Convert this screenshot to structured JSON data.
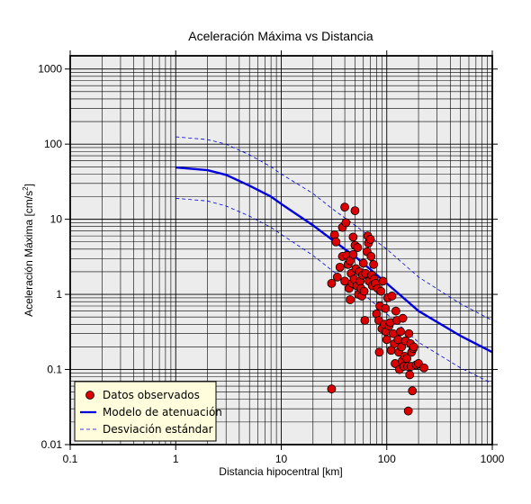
{
  "chart_data": {
    "type": "scatter",
    "title": "Aceleración Máxima vs Distancia",
    "xlabel": "Distancia hipocentral [km]",
    "ylabel_main": "Aceleración Máxima [cm/s",
    "ylabel_sup": "2",
    "ylabel_end": "]",
    "x_scale": "log",
    "y_scale": "log",
    "xlim": [
      0.1,
      1000
    ],
    "ylim": [
      0.01,
      1500
    ],
    "x_ticks": [
      {
        "value": 0.1,
        "label": "0.1"
      },
      {
        "value": 1,
        "label": "1"
      },
      {
        "value": 10,
        "label": "10"
      },
      {
        "value": 100,
        "label": "100"
      },
      {
        "value": 1000,
        "label": "1000"
      }
    ],
    "y_ticks": [
      {
        "value": 0.01,
        "label": "0.01"
      },
      {
        "value": 0.1,
        "label": "0.1"
      },
      {
        "value": 1,
        "label": "1"
      },
      {
        "value": 10,
        "label": "10"
      },
      {
        "value": 100,
        "label": "100"
      },
      {
        "value": 1000,
        "label": "1000"
      }
    ],
    "grid": true,
    "legend_position": "bottom-left",
    "colors": {
      "plot_background": "#ececec",
      "points": "#dd0000",
      "model": "#0000dd",
      "deviation": "#0000dd",
      "legend_background": "#fffddc"
    },
    "series": [
      {
        "name": "Datos observados",
        "kind": "points",
        "points": [
          [
            30,
            0.055
          ],
          [
            30,
            1.4
          ],
          [
            32,
            6.2
          ],
          [
            33,
            5.0
          ],
          [
            34,
            1.7
          ],
          [
            36,
            2.3
          ],
          [
            38,
            3.2
          ],
          [
            38,
            7.8
          ],
          [
            40,
            14.5
          ],
          [
            40,
            1.5
          ],
          [
            41,
            9.0
          ],
          [
            42,
            3.3
          ],
          [
            43,
            2.5
          ],
          [
            44,
            1.2
          ],
          [
            45,
            0.85
          ],
          [
            45,
            2.8
          ],
          [
            46,
            1.9
          ],
          [
            47,
            1.4
          ],
          [
            48,
            5.8
          ],
          [
            48,
            3.4
          ],
          [
            49,
            1.6
          ],
          [
            50,
            13.0
          ],
          [
            50,
            4.5
          ],
          [
            51,
            2.2
          ],
          [
            52,
            1.3
          ],
          [
            53,
            4.2
          ],
          [
            54,
            1.0
          ],
          [
            55,
            2.0
          ],
          [
            56,
            1.5
          ],
          [
            57,
            1.2
          ],
          [
            58,
            0.95
          ],
          [
            59,
            1.8
          ],
          [
            60,
            2.6
          ],
          [
            61,
            1.1
          ],
          [
            62,
            0.45
          ],
          [
            63,
            1.9
          ],
          [
            65,
            3.7
          ],
          [
            66,
            6.0
          ],
          [
            67,
            4.8
          ],
          [
            68,
            1.5
          ],
          [
            70,
            5.4
          ],
          [
            71,
            3.2
          ],
          [
            72,
            1.8
          ],
          [
            73,
            1.3
          ],
          [
            75,
            2.5
          ],
          [
            76,
            1.6
          ],
          [
            78,
            1.4
          ],
          [
            80,
            0.55
          ],
          [
            82,
            1.2
          ],
          [
            84,
            0.45
          ],
          [
            85,
            0.17
          ],
          [
            86,
            0.7
          ],
          [
            88,
            1.1
          ],
          [
            90,
            0.35
          ],
          [
            92,
            1.5
          ],
          [
            95,
            0.4
          ],
          [
            97,
            0.65
          ],
          [
            98,
            0.32
          ],
          [
            100,
            0.25
          ],
          [
            102,
            0.9
          ],
          [
            105,
            0.38
          ],
          [
            108,
            0.42
          ],
          [
            110,
            0.18
          ],
          [
            112,
            0.95
          ],
          [
            115,
            0.3
          ],
          [
            118,
            0.22
          ],
          [
            120,
            0.12
          ],
          [
            122,
            0.6
          ],
          [
            125,
            0.45
          ],
          [
            128,
            0.25
          ],
          [
            130,
            0.17
          ],
          [
            132,
            0.1
          ],
          [
            135,
            0.32
          ],
          [
            138,
            0.2
          ],
          [
            140,
            0.13
          ],
          [
            142,
            0.48
          ],
          [
            145,
            0.11
          ],
          [
            148,
            0.15
          ],
          [
            150,
            0.24
          ],
          [
            155,
            0.14
          ],
          [
            158,
            0.11
          ],
          [
            160,
            0.028
          ],
          [
            162,
            0.3
          ],
          [
            165,
            0.085
          ],
          [
            168,
            0.22
          ],
          [
            170,
            0.11
          ],
          [
            172,
            0.17
          ],
          [
            175,
            0.052
          ],
          [
            178,
            0.19
          ],
          [
            180,
            0.2
          ],
          [
            190,
            0.115
          ],
          [
            200,
            0.12
          ],
          [
            225,
            0.105
          ]
        ]
      },
      {
        "name": "Modelo de atenuación",
        "kind": "line",
        "points": [
          [
            1,
            49
          ],
          [
            2,
            45
          ],
          [
            3,
            39
          ],
          [
            5,
            28
          ],
          [
            8,
            20
          ],
          [
            10,
            16
          ],
          [
            20,
            8.3
          ],
          [
            30,
            5.4
          ],
          [
            50,
            3.2
          ],
          [
            100,
            1.4
          ],
          [
            200,
            0.6
          ],
          [
            500,
            0.28
          ],
          [
            1000,
            0.17
          ]
        ]
      },
      {
        "name": "Desviación estándar",
        "kind": "dashed",
        "points": [
          [
            1,
            125
          ],
          [
            2,
            115
          ],
          [
            3,
            100
          ],
          [
            5,
            72
          ],
          [
            8,
            50
          ],
          [
            10,
            40
          ],
          [
            20,
            22
          ],
          [
            30,
            14
          ],
          [
            50,
            8.3
          ],
          [
            100,
            4.0
          ],
          [
            200,
            1.7
          ],
          [
            500,
            0.75
          ],
          [
            1000,
            0.45
          ]
        ]
      },
      {
        "name": "",
        "kind": "dashed",
        "points": [
          [
            1,
            19
          ],
          [
            2,
            17.5
          ],
          [
            3,
            15
          ],
          [
            5,
            11
          ],
          [
            8,
            7.8
          ],
          [
            10,
            6.3
          ],
          [
            20,
            3.3
          ],
          [
            30,
            2.1
          ],
          [
            50,
            1.25
          ],
          [
            100,
            0.55
          ],
          [
            200,
            0.23
          ],
          [
            500,
            0.105
          ],
          [
            1000,
            0.065
          ]
        ]
      }
    ],
    "legend": [
      {
        "label": "Datos observados",
        "symbol": "circle"
      },
      {
        "label": "Modelo de atenuación",
        "symbol": "solid-line"
      },
      {
        "label": "Desviación estándar",
        "symbol": "dashed-line"
      }
    ]
  }
}
